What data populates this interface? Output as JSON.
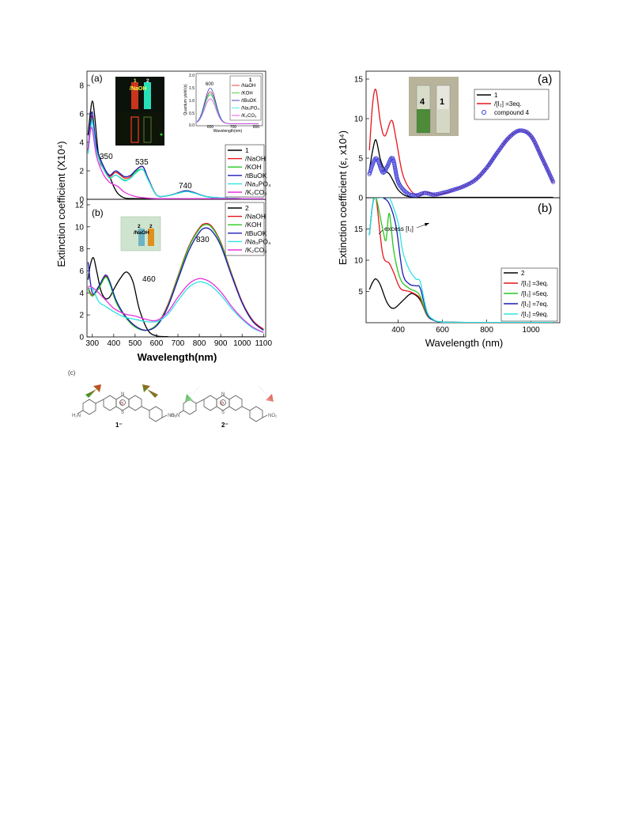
{
  "colors": {
    "black": "#000000",
    "red": "#e8141b",
    "green": "#25c91e",
    "blue": "#1b1bb4",
    "cyan": "#2ee3e3",
    "magenta": "#e831e0",
    "circle": "#3b3bd6"
  },
  "left_panel_a": {
    "panel_label": "(a)",
    "peak_labels": [
      "350",
      "535",
      "740"
    ],
    "photo_labels": [
      "1",
      "2",
      "/NaOH"
    ],
    "legend": [
      "1",
      "/NaOH",
      "/KOH",
      "/tBuOK",
      "/Na₃PO₄",
      "/K₂CO₃"
    ],
    "inset": {
      "legend_title": "1",
      "legend": [
        "/NaOH",
        "/KOH",
        "/tBuOK",
        "/Na₃PO₄",
        "/K₂CO₃"
      ],
      "peak_label": "600",
      "xlabel": "Wavelength(nm)",
      "ylabel": "Quantum yield (ε)",
      "x_ticks": [
        "600",
        "700",
        "800"
      ],
      "y_ticks": [
        "0.0",
        "0.5",
        "1.0",
        "1.5",
        "2.0"
      ]
    }
  },
  "left_panel_b": {
    "panel_label": "(b)",
    "peak_labels": [
      "460",
      "830"
    ],
    "photo_labels": [
      "2",
      "2",
      "/NaOH"
    ],
    "legend": [
      "2",
      "/NaOH",
      "/KOH",
      "/tBuOK",
      "/Na₃PO₄",
      "/K₂CO₃"
    ]
  },
  "left_axes": {
    "ylabel": "Extinction coefficient (X10⁴)",
    "xlabel": "Wavelength(nm)",
    "x_ticks": [
      "300",
      "400",
      "500",
      "600",
      "700",
      "800",
      "900",
      "1000",
      "1100"
    ],
    "y_ticks_a": [
      "0",
      "2",
      "4",
      "6",
      "8"
    ],
    "y_ticks_b": [
      "0",
      "2",
      "4",
      "6",
      "8",
      "10",
      "12"
    ]
  },
  "right_panel_a": {
    "panel_label": "(a)",
    "photo_labels": [
      "4",
      "1"
    ],
    "legend": [
      "1",
      "/[I₂] =3eq.",
      "compound 4"
    ]
  },
  "right_panel_b": {
    "panel_label": "(b)",
    "annotation": "excess [I₂]",
    "legend": [
      "2",
      "/[I₂] =3eq.",
      "/[I₂] =5eq.",
      "/[I₂] =7eq.",
      "/[I₂] =9eq."
    ]
  },
  "right_axes": {
    "ylabel": "Extinction coefficient (ε, x10⁴)",
    "xlabel": "Wavelength (nm)",
    "x_ticks": [
      "400",
      "600",
      "800",
      "1000"
    ],
    "y_ticks_a": [
      "0",
      "5",
      "10",
      "15"
    ],
    "y_ticks_b": [
      "5",
      "10",
      "15"
    ]
  },
  "scheme": {
    "panel_label": "(c)",
    "molecule_1": "1⁻",
    "molecule_2": "2⁻",
    "substituent_1_left": "H₂N",
    "substituent_1_right": "NH₂",
    "substituent_2_left": "O₂N",
    "substituent_2_right": "NO₂",
    "ring_atoms": [
      "N",
      "S",
      "⊖"
    ]
  },
  "chart_data": [
    {
      "type": "line",
      "title": "(a)",
      "xlabel": "Wavelength(nm)",
      "ylabel": "Extinction coefficient (X10⁴)",
      "xlim": [
        275,
        1110
      ],
      "ylim": [
        0,
        9
      ],
      "series": [
        {
          "name": "1",
          "x": [
            280,
            290,
            300,
            310,
            330,
            350,
            380,
            400,
            420,
            450,
            500,
            530,
            560,
            600,
            650,
            700,
            740,
            800,
            900,
            1000,
            1100
          ],
          "y": [
            4.5,
            6.0,
            6.9,
            6.0,
            3.0,
            2.2,
            1.6,
            0.9,
            0.4,
            0.1,
            0.05,
            0.05,
            0.05,
            0.05,
            0.05,
            0.05,
            0.05,
            0.05,
            0.05,
            0.05,
            0.05
          ]
        },
        {
          "name": "/NaOH",
          "x": [
            280,
            290,
            300,
            320,
            350,
            380,
            410,
            450,
            480,
            500,
            535,
            560,
            600,
            650,
            700,
            740,
            780,
            850,
            1000,
            1100
          ],
          "y": [
            3.5,
            5.0,
            5.8,
            3.6,
            2.3,
            1.6,
            1.9,
            1.5,
            1.6,
            2.0,
            2.3,
            1.5,
            0.3,
            0.25,
            0.45,
            0.6,
            0.45,
            0.15,
            0.05,
            0.05
          ]
        },
        {
          "name": "/KOH",
          "x": [
            280,
            290,
            300,
            320,
            350,
            380,
            410,
            450,
            480,
            500,
            535,
            560,
            600,
            650,
            700,
            740,
            780,
            850,
            1000,
            1100
          ],
          "y": [
            3.3,
            4.9,
            5.6,
            3.4,
            2.2,
            1.5,
            1.7,
            1.35,
            1.5,
            1.9,
            2.1,
            1.4,
            0.3,
            0.25,
            0.42,
            0.55,
            0.42,
            0.15,
            0.05,
            0.05
          ]
        },
        {
          "name": "/tBuOK",
          "x": [
            280,
            290,
            300,
            320,
            350,
            380,
            410,
            450,
            480,
            500,
            535,
            560,
            600,
            650,
            700,
            740,
            780,
            850,
            1000,
            1100
          ],
          "y": [
            3.4,
            5.2,
            6.1,
            3.7,
            2.4,
            1.7,
            2.0,
            1.6,
            1.7,
            2.0,
            2.3,
            1.5,
            0.3,
            0.25,
            0.45,
            0.6,
            0.45,
            0.15,
            0.05,
            0.05
          ]
        },
        {
          "name": "/Na₃PO₄",
          "x": [
            280,
            290,
            300,
            320,
            350,
            380,
            410,
            450,
            480,
            500,
            535,
            560,
            600,
            650,
            700,
            740,
            780,
            850,
            1000,
            1100
          ],
          "y": [
            3.2,
            4.6,
            5.4,
            3.3,
            2.2,
            1.5,
            1.7,
            1.3,
            1.5,
            1.8,
            2.1,
            1.4,
            0.3,
            0.25,
            0.42,
            0.55,
            0.42,
            0.15,
            0.05,
            0.05
          ]
        },
        {
          "name": "/K₂CO₃",
          "x": [
            280,
            290,
            300,
            320,
            350,
            380,
            420,
            450,
            500,
            550,
            600,
            700,
            800,
            1100
          ],
          "y": [
            3.5,
            4.8,
            4.9,
            3.0,
            1.8,
            1.2,
            0.9,
            0.5,
            0.2,
            0.1,
            0.05,
            0.05,
            0.05,
            0.05
          ]
        }
      ]
    },
    {
      "type": "line",
      "title": "(b)",
      "xlabel": "Wavelength(nm)",
      "ylabel": "Extinction coefficient (X10⁴)",
      "xlim": [
        275,
        1110
      ],
      "ylim": [
        0,
        12.5
      ],
      "series": [
        {
          "name": "2",
          "x": [
            280,
            290,
            305,
            320,
            340,
            360,
            380,
            400,
            430,
            460,
            490,
            520,
            560,
            600,
            650,
            700,
            1100
          ],
          "y": [
            5.2,
            6.5,
            7.2,
            6.0,
            4.2,
            3.5,
            3.6,
            4.3,
            5.3,
            5.9,
            5.0,
            2.5,
            0.6,
            0.1,
            0.02,
            0,
            0
          ]
        },
        {
          "name": "/NaOH",
          "x": [
            280,
            300,
            330,
            360,
            380,
            410,
            450,
            500,
            550,
            600,
            650,
            700,
            750,
            800,
            830,
            860,
            900,
            950,
            1000,
            1050,
            1100
          ],
          "y": [
            4.5,
            3.8,
            4.5,
            5.5,
            5.0,
            3.3,
            2.0,
            1.0,
            0.6,
            1.1,
            2.8,
            5.5,
            8.2,
            9.9,
            10.3,
            10.0,
            8.6,
            5.8,
            3.2,
            1.5,
            0.7
          ]
        },
        {
          "name": "/KOH",
          "x": [
            280,
            300,
            330,
            360,
            380,
            410,
            450,
            500,
            550,
            600,
            650,
            700,
            750,
            800,
            830,
            860,
            900,
            950,
            1000,
            1050,
            1100
          ],
          "y": [
            4.3,
            3.7,
            4.4,
            5.4,
            4.9,
            3.2,
            1.9,
            0.9,
            0.6,
            1.1,
            2.7,
            5.4,
            8.1,
            9.8,
            10.2,
            9.9,
            8.5,
            5.7,
            3.1,
            1.4,
            0.6
          ]
        },
        {
          "name": "/tBuOK",
          "x": [
            280,
            300,
            330,
            360,
            380,
            410,
            450,
            500,
            550,
            600,
            650,
            700,
            750,
            800,
            830,
            860,
            900,
            950,
            1000,
            1050,
            1100
          ],
          "y": [
            6.8,
            4.0,
            4.6,
            5.6,
            5.1,
            3.4,
            2.0,
            1.0,
            0.6,
            1.0,
            2.6,
            5.2,
            7.8,
            9.5,
            9.9,
            9.6,
            8.3,
            5.6,
            3.1,
            1.4,
            0.6
          ]
        },
        {
          "name": "/Na₃PO₄",
          "x": [
            280,
            300,
            330,
            360,
            400,
            450,
            500,
            550,
            600,
            650,
            700,
            750,
            800,
            850,
            900,
            950,
            1000,
            1050,
            1100
          ],
          "y": [
            4.2,
            4.4,
            3.2,
            2.8,
            2.3,
            1.8,
            1.6,
            1.4,
            1.4,
            2.0,
            3.3,
            4.5,
            5.0,
            4.7,
            3.8,
            2.6,
            1.6,
            0.8,
            0.4
          ]
        },
        {
          "name": "/K₂CO₃",
          "x": [
            280,
            300,
            330,
            360,
            400,
            450,
            500,
            550,
            600,
            650,
            700,
            750,
            800,
            850,
            900,
            950,
            1000,
            1050,
            1100
          ],
          "y": [
            4.6,
            4.5,
            4.0,
            3.4,
            2.6,
            2.1,
            1.9,
            1.6,
            1.5,
            2.2,
            3.6,
            4.8,
            5.3,
            5.0,
            4.1,
            2.8,
            1.7,
            0.9,
            0.4
          ]
        }
      ]
    },
    {
      "type": "line",
      "title": "(a)",
      "xlabel": "Wavelength (nm)",
      "ylabel": "Extinction coefficient (ε, x10⁴)",
      "xlim": [
        255,
        1130
      ],
      "ylim": [
        0,
        16
      ],
      "series": [
        {
          "name": "1",
          "x": [
            270,
            285,
            300,
            320,
            340,
            360,
            380,
            400,
            430,
            460,
            500,
            600,
            800,
            1100
          ],
          "y": [
            3.5,
            6.0,
            7.3,
            4.8,
            3.5,
            3.0,
            2.0,
            1.0,
            0.3,
            0.1,
            0.05,
            0.05,
            0.05,
            0.05
          ]
        },
        {
          "name": "/[I₂] =3eq.",
          "x": [
            270,
            285,
            300,
            320,
            340,
            370,
            390,
            420,
            460,
            500,
            520,
            560,
            600,
            650,
            700,
            750,
            800,
            850,
            900,
            950,
            1000,
            1050,
            1100
          ],
          "y": [
            6.0,
            12.0,
            13.6,
            9.5,
            7.8,
            9.8,
            7.5,
            3.0,
            0.8,
            0.3,
            0.8,
            0.4,
            0.5,
            1.0,
            1.5,
            2.3,
            3.8,
            5.8,
            7.6,
            8.5,
            7.8,
            5.0,
            1.9
          ]
        },
        {
          "name": "compound 4",
          "x": [
            270,
            300,
            330,
            350,
            375,
            400,
            440,
            480,
            520,
            560,
            600,
            650,
            700,
            750,
            800,
            850,
            900,
            950,
            1000,
            1050,
            1100
          ],
          "y": [
            3.0,
            5.0,
            3.2,
            3.9,
            5.0,
            2.0,
            0.6,
            0.3,
            0.6,
            0.4,
            0.6,
            1.0,
            1.5,
            2.3,
            3.8,
            5.8,
            7.6,
            8.5,
            7.8,
            5.0,
            2.0
          ]
        }
      ]
    },
    {
      "type": "line",
      "title": "(b)",
      "xlabel": "Wavelength (nm)",
      "ylabel": "Extinction coefficient (ε, x10⁴)",
      "xlim": [
        255,
        1130
      ],
      "ylim": [
        0,
        20
      ],
      "series": [
        {
          "name": "2",
          "x": [
            270,
            285,
            300,
            320,
            350,
            380,
            420,
            450,
            470,
            500,
            530,
            560,
            600,
            700,
            1100
          ],
          "y": [
            5.3,
            6.5,
            7.0,
            6.0,
            3.2,
            2.3,
            3.5,
            4.5,
            4.6,
            3.6,
            1.2,
            0.4,
            0.1,
            0.05,
            0.05
          ]
        },
        {
          "name": "/[I₂] =3eq.",
          "x": [
            270,
            285,
            300,
            330,
            360,
            380,
            410,
            450,
            480,
            500,
            530,
            560,
            600,
            700,
            1100
          ],
          "y": [
            14,
            19,
            20,
            11,
            9.5,
            8.0,
            5.5,
            5.0,
            4.5,
            3.8,
            1.2,
            0.4,
            0.1,
            0.05,
            0.05
          ]
        },
        {
          "name": "/[I₂] =5eq.",
          "x": [
            270,
            285,
            300,
            330,
            345,
            360,
            380,
            410,
            450,
            480,
            500,
            530,
            560,
            600,
            700,
            1100
          ],
          "y": [
            14,
            19,
            20,
            15,
            13.2,
            17.5,
            11.5,
            7.0,
            5.5,
            5.0,
            4.2,
            1.3,
            0.4,
            0.1,
            0.05,
            0.05
          ]
        },
        {
          "name": "/[I₂] =7eq.",
          "x": [
            270,
            285,
            300,
            330,
            360,
            390,
            420,
            450,
            480,
            500,
            530,
            560,
            600,
            700,
            1100
          ],
          "y": [
            14,
            19,
            20,
            20,
            19,
            15.5,
            8.0,
            6.2,
            5.9,
            5.5,
            1.5,
            0.4,
            0.1,
            0.05,
            0.05
          ]
        },
        {
          "name": "/[I₂] =9eq.",
          "x": [
            270,
            285,
            300,
            330,
            360,
            400,
            420,
            450,
            480,
            500,
            530,
            560,
            600,
            700,
            1100
          ],
          "y": [
            14,
            19,
            20,
            20,
            20,
            16,
            11.5,
            8.5,
            7.0,
            6.5,
            1.8,
            0.5,
            0.1,
            0.05,
            0.05
          ]
        }
      ]
    }
  ]
}
